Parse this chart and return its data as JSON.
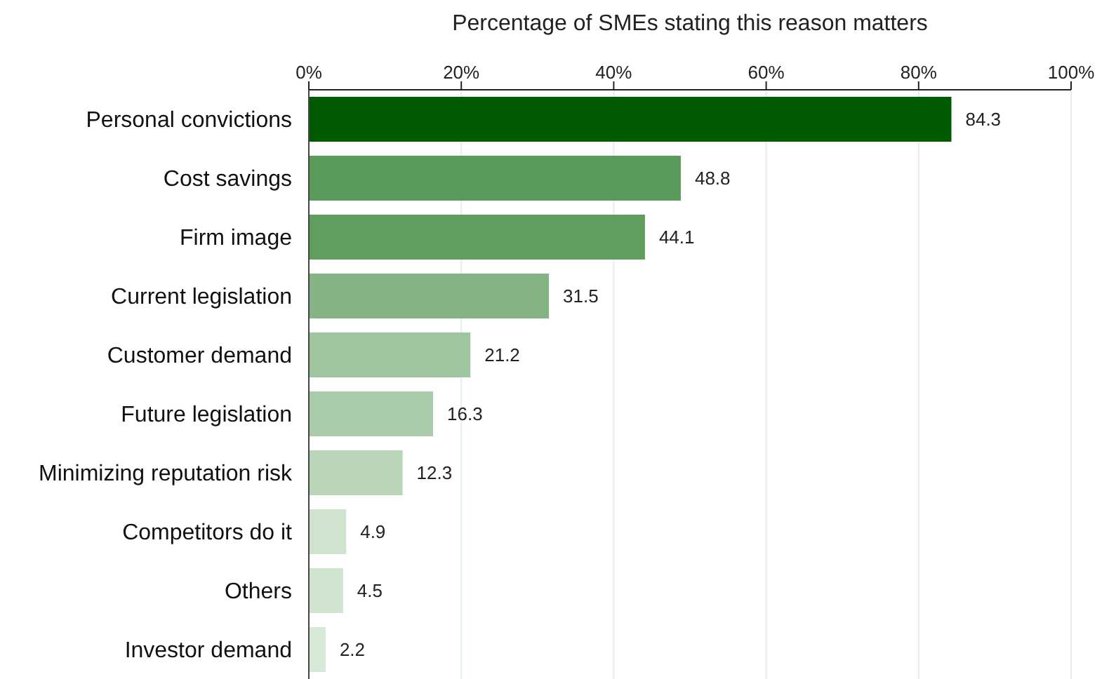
{
  "chart_data": {
    "type": "bar",
    "orientation": "horizontal",
    "xlabel": "Percentage of SMEs stating this reason matters",
    "categories": [
      "Personal convictions",
      "Cost savings",
      "Firm image",
      "Current legislation",
      "Customer demand",
      "Future legislation",
      "Minimizing reputation risk",
      "Competitors do it",
      "Others",
      "Investor demand"
    ],
    "values": [
      84.3,
      48.8,
      44.1,
      31.5,
      21.2,
      16.3,
      12.3,
      4.9,
      4.5,
      2.2
    ],
    "colors": [
      "#005a00",
      "#5a9a5a",
      "#5f9e5f",
      "#84b484",
      "#a0c6a0",
      "#aacbaa",
      "#b9d6b9",
      "#cfe3cf",
      "#d0e4d0",
      "#d6e8d6"
    ],
    "xlim": [
      0,
      100
    ],
    "xticks": [
      {
        "value": 0,
        "label": "0%"
      },
      {
        "value": 20,
        "label": "20%"
      },
      {
        "value": 40,
        "label": "40%"
      },
      {
        "value": 60,
        "label": "60%"
      },
      {
        "value": 80,
        "label": "80%"
      },
      {
        "value": 100,
        "label": "100%"
      }
    ],
    "grid": "x",
    "data_labels": true
  }
}
